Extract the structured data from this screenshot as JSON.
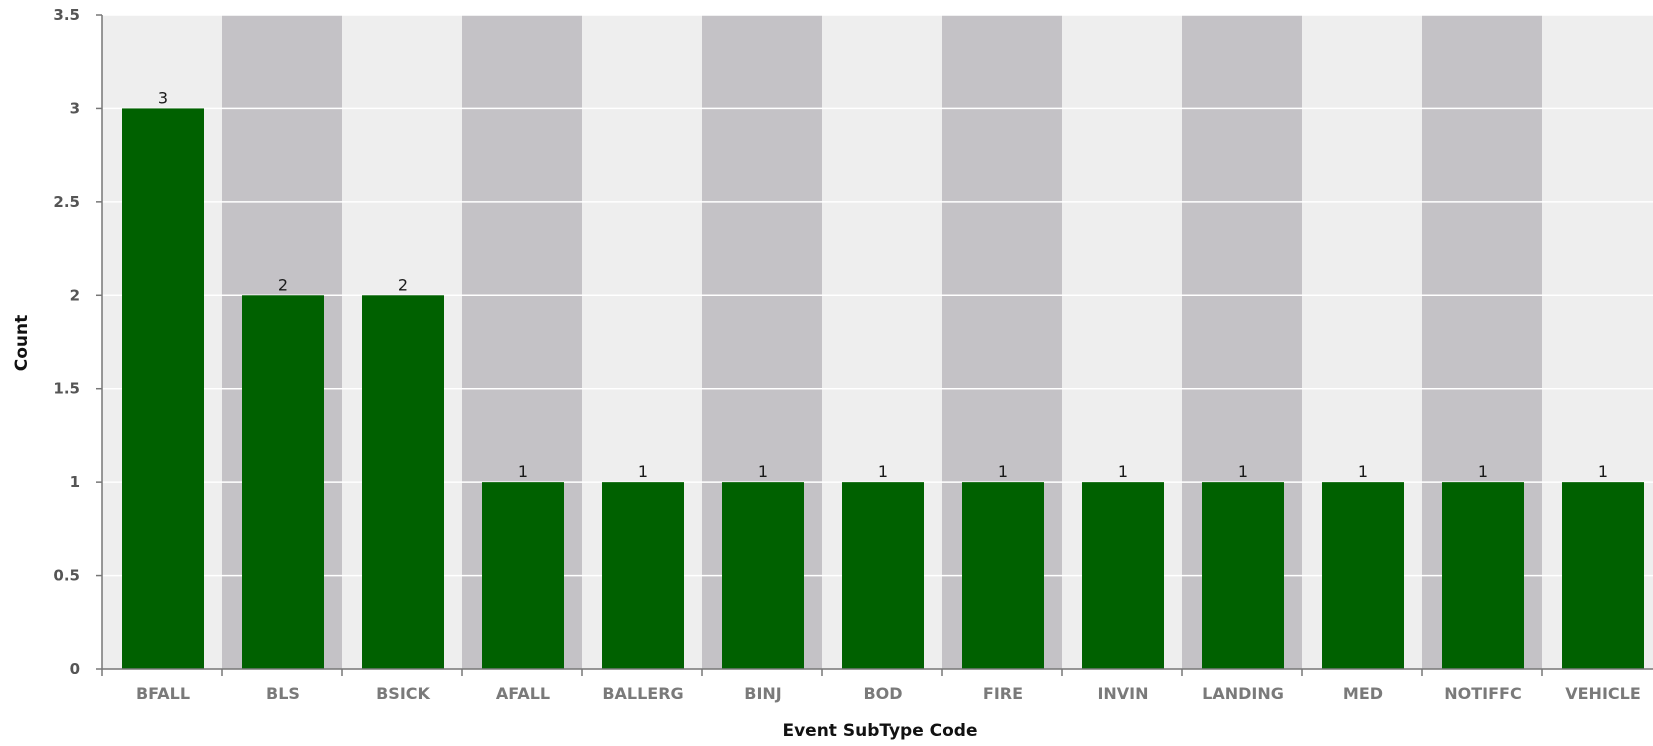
{
  "chart_data": {
    "type": "bar",
    "title": "",
    "xlabel": "Event SubType Code",
    "ylabel": "Count",
    "categories": [
      "BFALL",
      "BLS",
      "BSICK",
      "AFALL",
      "BALLERG",
      "BINJ",
      "BOD",
      "FIRE",
      "INVIN",
      "LANDING",
      "MED",
      "NOTIFFC",
      "VEHICLE"
    ],
    "values": [
      3,
      2,
      2,
      1,
      1,
      1,
      1,
      1,
      1,
      1,
      1,
      1,
      1
    ],
    "ylim": [
      0,
      3.5
    ],
    "yticks": [
      "0",
      "0.5",
      "1",
      "1.5",
      "2",
      "2.5",
      "3",
      "3.5"
    ],
    "data_labels": [
      "3",
      "2",
      "2",
      "1",
      "1",
      "1",
      "1",
      "1",
      "1",
      "1",
      "1",
      "1",
      "1"
    ],
    "grid": true,
    "legend": "none",
    "colors": {
      "bar": "#006100",
      "band_light": "#eeeeee",
      "band_dark": "#c4c2c6",
      "gridline": "#ffffff",
      "axis": "#777777"
    }
  }
}
